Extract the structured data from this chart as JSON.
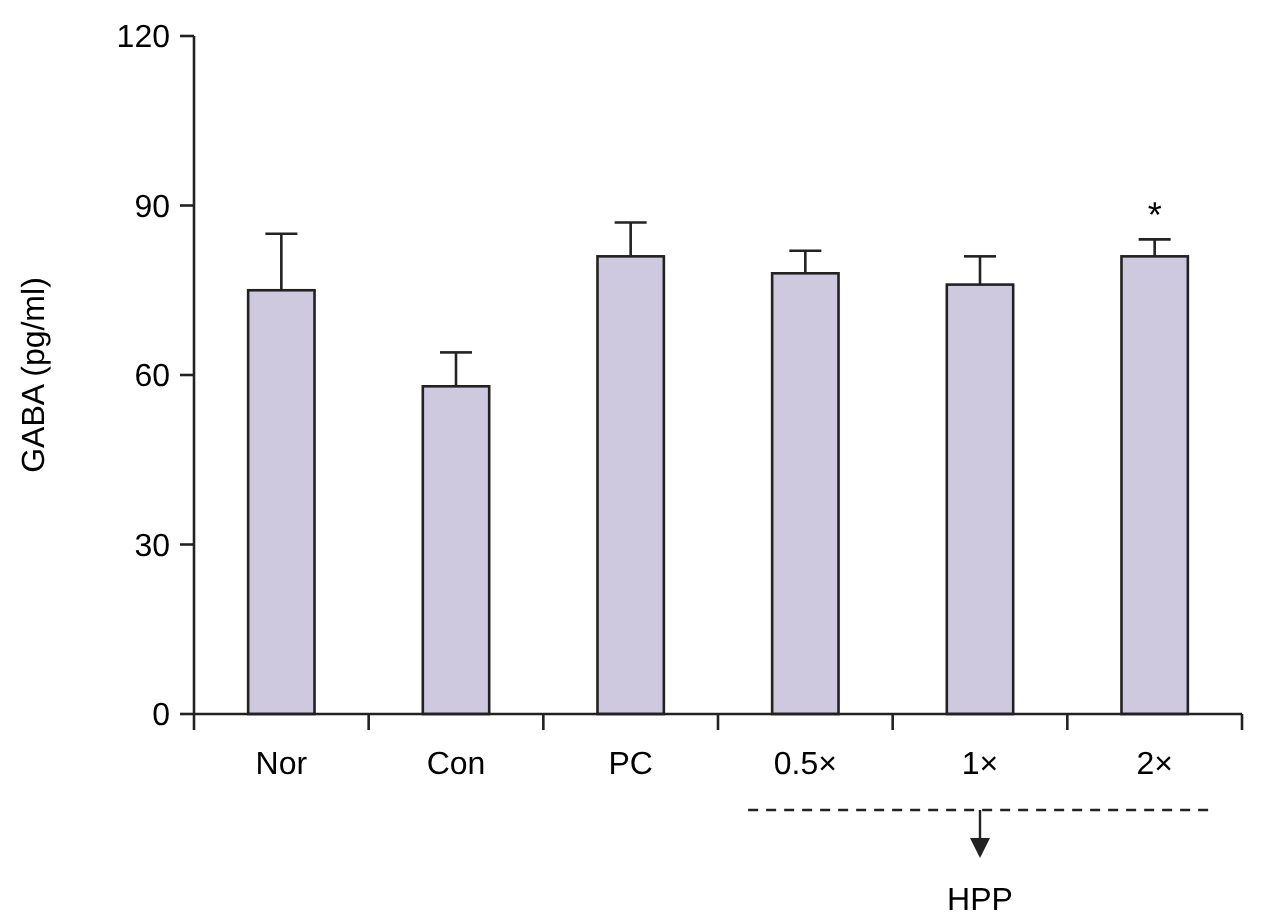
{
  "chart_data": {
    "type": "bar",
    "ylabel": "GABA (pg/ml)",
    "categories": [
      "Nor",
      "Con",
      "PC",
      "0.5×",
      "1×",
      "2×"
    ],
    "values": [
      75,
      58,
      81,
      78,
      76,
      81
    ],
    "errors": [
      10,
      6,
      6,
      4,
      5,
      3
    ],
    "color": "#cfc9e0",
    "ylim": [
      0,
      120
    ],
    "yticks": [
      0,
      30,
      60,
      90,
      120
    ],
    "grid": false,
    "annotations": [
      {
        "text": "*",
        "x": "2×",
        "y": 84
      },
      "HPP"
    ]
  }
}
